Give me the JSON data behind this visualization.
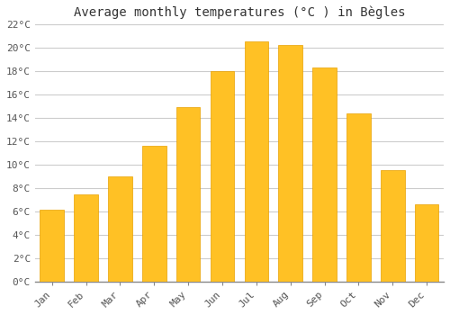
{
  "title": "Average monthly temperatures (°C ) in Bègles",
  "months": [
    "Jan",
    "Feb",
    "Mar",
    "Apr",
    "May",
    "Jun",
    "Jul",
    "Aug",
    "Sep",
    "Oct",
    "Nov",
    "Dec"
  ],
  "values": [
    6.1,
    7.4,
    9.0,
    11.6,
    14.9,
    18.0,
    20.5,
    20.2,
    18.3,
    14.4,
    9.5,
    6.6
  ],
  "bar_color": "#FFC125",
  "bar_edge_color": "#E8A000",
  "background_color": "#FFFFFF",
  "grid_color": "#CCCCCC",
  "text_color": "#555555",
  "ylim": [
    0,
    22
  ],
  "yticks": [
    0,
    2,
    4,
    6,
    8,
    10,
    12,
    14,
    16,
    18,
    20,
    22
  ],
  "title_fontsize": 10,
  "tick_fontsize": 8,
  "figsize": [
    5.0,
    3.5
  ],
  "dpi": 100
}
